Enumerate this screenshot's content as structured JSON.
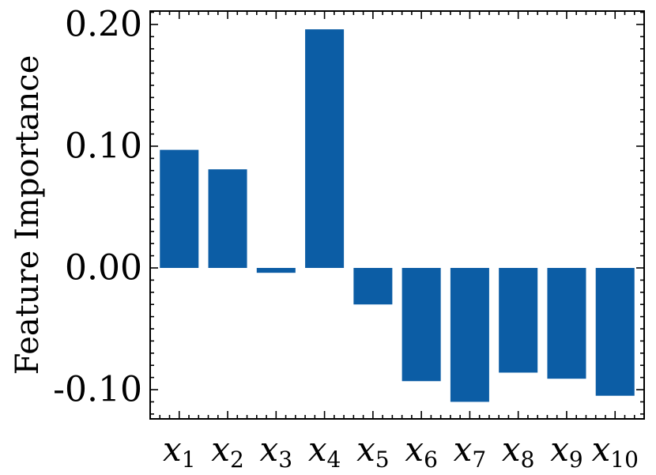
{
  "chart_data": {
    "type": "bar",
    "title": "",
    "xlabel": "",
    "ylabel": "Feature Importance",
    "categories": [
      {
        "base": "x",
        "sub": "1"
      },
      {
        "base": "x",
        "sub": "2"
      },
      {
        "base": "x",
        "sub": "3"
      },
      {
        "base": "x",
        "sub": "4"
      },
      {
        "base": "x",
        "sub": "5"
      },
      {
        "base": "x",
        "sub": "6"
      },
      {
        "base": "x",
        "sub": "7"
      },
      {
        "base": "x",
        "sub": "8"
      },
      {
        "base": "x",
        "sub": "9"
      },
      {
        "base": "x",
        "sub": "10"
      }
    ],
    "values": [
      0.097,
      0.081,
      -0.004,
      0.196,
      -0.03,
      -0.093,
      -0.11,
      -0.086,
      -0.091,
      -0.105
    ],
    "ylim": [
      -0.124,
      0.211
    ],
    "yticks": [
      {
        "value": -0.1,
        "label": "-0.10"
      },
      {
        "value": 0.0,
        "label": "0.00"
      },
      {
        "value": 0.1,
        "label": "0.10"
      },
      {
        "value": 0.2,
        "label": "0.20"
      }
    ],
    "bar_color": "#0C5DA5",
    "grid": false,
    "legend": "none"
  }
}
